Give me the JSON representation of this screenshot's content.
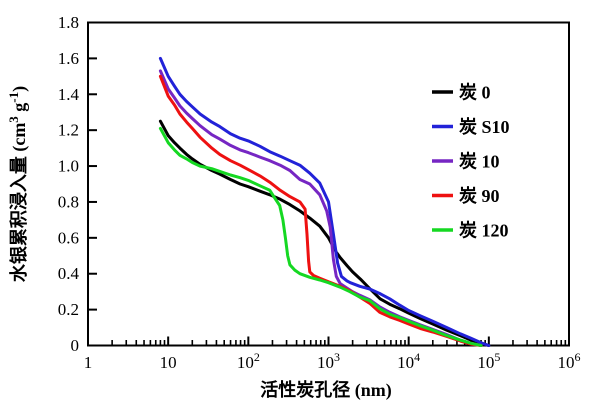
{
  "figure": {
    "background": "#ffffff",
    "frame_color": "#000000"
  },
  "chart_data": {
    "type": "line",
    "title": "",
    "xlabel": "活性炭孔径 (nm)",
    "ylabel_plain": "水银累积浸入量 (cm3 g-1)",
    "ylabel_parts": [
      {
        "t": "水银累积浸入量 (cm"
      },
      {
        "t": "3",
        "sup": true
      },
      {
        "t": " g"
      },
      {
        "t": "-1",
        "sup": true
      },
      {
        "t": ")"
      }
    ],
    "x_axis": {
      "scale": "log",
      "min": 1,
      "max": 1000000,
      "ticks": [
        {
          "base": "1",
          "value": 1
        },
        {
          "base": "10",
          "value": 10
        },
        {
          "base": "10",
          "exp": "2",
          "value": 100
        },
        {
          "base": "10",
          "exp": "3",
          "value": 1000
        },
        {
          "base": "10",
          "exp": "4",
          "value": 10000
        },
        {
          "base": "10",
          "exp": "5",
          "value": 100000
        },
        {
          "base": "10",
          "exp": "6",
          "value": 1000000
        }
      ],
      "minor_ticks": "log 2-9 each decade"
    },
    "y_axis": {
      "scale": "linear",
      "min": 0,
      "max": 1.8,
      "tick_step": 0.2,
      "tick_labels": [
        "0",
        "0.2",
        "0.4",
        "0.6",
        "0.8",
        "1.0",
        "1.2",
        "1.4",
        "1.6",
        "1.8"
      ]
    },
    "grid": false,
    "legend_position": "upper-right-inside",
    "series": [
      {
        "name": "炭 0",
        "color": "#000000",
        "points": [
          [
            8,
            1.25
          ],
          [
            10,
            1.17
          ],
          [
            12,
            1.13
          ],
          [
            14,
            1.1
          ],
          [
            17,
            1.065
          ],
          [
            20,
            1.04
          ],
          [
            25,
            1.01
          ],
          [
            35,
            0.975
          ],
          [
            44,
            0.955
          ],
          [
            60,
            0.925
          ],
          [
            79,
            0.9
          ],
          [
            100,
            0.885
          ],
          [
            140,
            0.86
          ],
          [
            185,
            0.84
          ],
          [
            250,
            0.815
          ],
          [
            330,
            0.785
          ],
          [
            440,
            0.75
          ],
          [
            585,
            0.71
          ],
          [
            780,
            0.665
          ],
          [
            1000,
            0.6
          ],
          [
            1100,
            0.565
          ],
          [
            1250,
            0.52
          ],
          [
            1400,
            0.49
          ],
          [
            1700,
            0.445
          ],
          [
            2000,
            0.41
          ],
          [
            2500,
            0.37
          ],
          [
            3300,
            0.315
          ],
          [
            4400,
            0.26
          ],
          [
            5800,
            0.23
          ],
          [
            7700,
            0.205
          ],
          [
            10000,
            0.18
          ],
          [
            14000,
            0.15
          ],
          [
            20000,
            0.12
          ],
          [
            30000,
            0.085
          ],
          [
            44000,
            0.055
          ],
          [
            60000,
            0.03
          ],
          [
            80000,
            0.012
          ],
          [
            100000,
            0
          ]
        ]
      },
      {
        "name": "炭 S10",
        "color": "#2222d8",
        "points": [
          [
            8,
            1.6
          ],
          [
            10,
            1.5
          ],
          [
            12,
            1.445
          ],
          [
            14,
            1.4
          ],
          [
            17,
            1.36
          ],
          [
            20,
            1.33
          ],
          [
            25,
            1.29
          ],
          [
            35,
            1.245
          ],
          [
            44,
            1.22
          ],
          [
            60,
            1.18
          ],
          [
            79,
            1.155
          ],
          [
            100,
            1.14
          ],
          [
            140,
            1.11
          ],
          [
            185,
            1.08
          ],
          [
            250,
            1.055
          ],
          [
            330,
            1.03
          ],
          [
            440,
            1.005
          ],
          [
            585,
            0.96
          ],
          [
            780,
            0.905
          ],
          [
            1000,
            0.8
          ],
          [
            1150,
            0.62
          ],
          [
            1300,
            0.46
          ],
          [
            1450,
            0.385
          ],
          [
            1700,
            0.36
          ],
          [
            1870,
            0.35
          ],
          [
            2460,
            0.33
          ],
          [
            3270,
            0.315
          ],
          [
            4350,
            0.29
          ],
          [
            5800,
            0.26
          ],
          [
            7700,
            0.225
          ],
          [
            10000,
            0.195
          ],
          [
            14000,
            0.165
          ],
          [
            20000,
            0.135
          ],
          [
            30000,
            0.1
          ],
          [
            44000,
            0.065
          ],
          [
            60000,
            0.04
          ],
          [
            80000,
            0.015
          ],
          [
            100000,
            0
          ]
        ]
      },
      {
        "name": "炭 10",
        "color": "#7626c3",
        "points": [
          [
            8,
            1.53
          ],
          [
            10,
            1.43
          ],
          [
            12,
            1.38
          ],
          [
            14,
            1.335
          ],
          [
            17,
            1.295
          ],
          [
            20,
            1.265
          ],
          [
            25,
            1.225
          ],
          [
            35,
            1.175
          ],
          [
            44,
            1.15
          ],
          [
            60,
            1.115
          ],
          [
            79,
            1.09
          ],
          [
            100,
            1.075
          ],
          [
            140,
            1.05
          ],
          [
            185,
            1.03
          ],
          [
            250,
            1.005
          ],
          [
            330,
            0.975
          ],
          [
            440,
            0.925
          ],
          [
            585,
            0.9
          ],
          [
            780,
            0.84
          ],
          [
            950,
            0.75
          ],
          [
            1050,
            0.66
          ],
          [
            1150,
            0.48
          ],
          [
            1250,
            0.385
          ],
          [
            1400,
            0.345
          ],
          [
            1700,
            0.32
          ],
          [
            2000,
            0.3
          ],
          [
            2460,
            0.28
          ],
          [
            3270,
            0.255
          ],
          [
            4350,
            0.215
          ],
          [
            5800,
            0.185
          ],
          [
            7700,
            0.16
          ],
          [
            10000,
            0.14
          ],
          [
            14000,
            0.115
          ],
          [
            20000,
            0.09
          ],
          [
            30000,
            0.06
          ],
          [
            44000,
            0.03
          ],
          [
            60000,
            0.012
          ],
          [
            80000,
            0
          ]
        ]
      },
      {
        "name": "炭 90",
        "color": "#ee1111",
        "points": [
          [
            8,
            1.5
          ],
          [
            10,
            1.39
          ],
          [
            12,
            1.34
          ],
          [
            14,
            1.29
          ],
          [
            17,
            1.245
          ],
          [
            20,
            1.21
          ],
          [
            25,
            1.16
          ],
          [
            35,
            1.1
          ],
          [
            44,
            1.065
          ],
          [
            60,
            1.03
          ],
          [
            79,
            1.005
          ],
          [
            100,
            0.98
          ],
          [
            140,
            0.945
          ],
          [
            185,
            0.91
          ],
          [
            250,
            0.865
          ],
          [
            330,
            0.83
          ],
          [
            440,
            0.8
          ],
          [
            510,
            0.76
          ],
          [
            540,
            0.62
          ],
          [
            565,
            0.47
          ],
          [
            585,
            0.41
          ],
          [
            650,
            0.39
          ],
          [
            780,
            0.375
          ],
          [
            1000,
            0.355
          ],
          [
            1400,
            0.33
          ],
          [
            1850,
            0.305
          ],
          [
            2460,
            0.27
          ],
          [
            3270,
            0.235
          ],
          [
            4350,
            0.185
          ],
          [
            5800,
            0.16
          ],
          [
            7700,
            0.14
          ],
          [
            10000,
            0.12
          ],
          [
            14000,
            0.095
          ],
          [
            20000,
            0.075
          ],
          [
            30000,
            0.05
          ],
          [
            44000,
            0.025
          ],
          [
            60000,
            0.008
          ],
          [
            80000,
            0
          ]
        ]
      },
      {
        "name": "炭 120",
        "color": "#15d822",
        "points": [
          [
            8,
            1.21
          ],
          [
            10,
            1.13
          ],
          [
            12,
            1.09
          ],
          [
            14,
            1.06
          ],
          [
            17,
            1.04
          ],
          [
            20,
            1.02
          ],
          [
            25,
            1.0
          ],
          [
            35,
            0.985
          ],
          [
            44,
            0.97
          ],
          [
            60,
            0.95
          ],
          [
            79,
            0.935
          ],
          [
            100,
            0.92
          ],
          [
            140,
            0.89
          ],
          [
            185,
            0.865
          ],
          [
            215,
            0.82
          ],
          [
            246,
            0.78
          ],
          [
            270,
            0.7
          ],
          [
            290,
            0.6
          ],
          [
            310,
            0.5
          ],
          [
            330,
            0.45
          ],
          [
            380,
            0.42
          ],
          [
            440,
            0.4
          ],
          [
            585,
            0.38
          ],
          [
            780,
            0.365
          ],
          [
            1000,
            0.35
          ],
          [
            1400,
            0.325
          ],
          [
            1850,
            0.3
          ],
          [
            2460,
            0.27
          ],
          [
            3270,
            0.25
          ],
          [
            4350,
            0.205
          ],
          [
            5800,
            0.175
          ],
          [
            7700,
            0.155
          ],
          [
            10000,
            0.135
          ],
          [
            14000,
            0.11
          ],
          [
            20000,
            0.085
          ],
          [
            30000,
            0.055
          ],
          [
            44000,
            0.03
          ],
          [
            60000,
            0.012
          ],
          [
            80000,
            0
          ]
        ]
      }
    ]
  }
}
